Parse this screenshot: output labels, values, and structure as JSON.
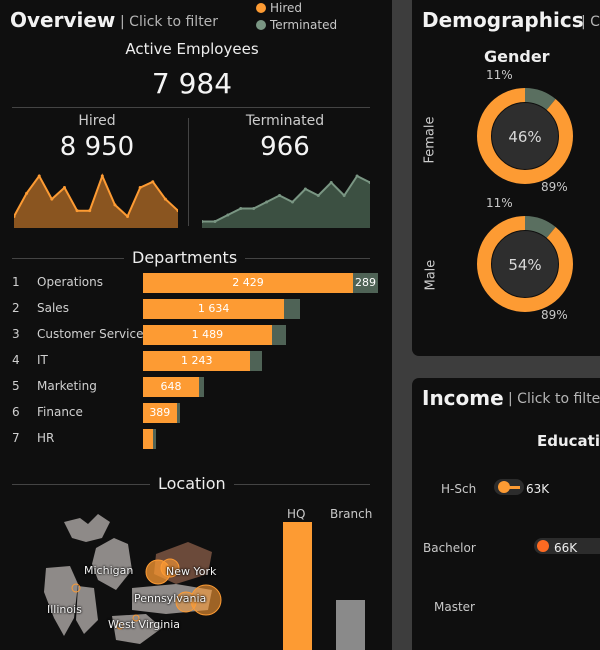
{
  "overview": {
    "title": "Overview",
    "filter_hint": "| Click to filter",
    "legend": [
      {
        "label": "Hired",
        "color": "#fd9b33"
      },
      {
        "label": "Terminated",
        "color": "#7a9683"
      }
    ],
    "active_label": "Active Employees",
    "active_value": "7 984",
    "hired_label": "Hired",
    "hired_value": "8 950",
    "terminated_label": "Terminated",
    "terminated_value": "966",
    "departments_title": "Departments",
    "location_title": "Location",
    "location_states": [
      "Michigan",
      "New York",
      "Illinois",
      "Pennsylvania",
      "West Virginia"
    ],
    "location_cols": [
      "HQ",
      "Branch"
    ]
  },
  "demographics": {
    "title": "Demographics",
    "filter_hint": "| C",
    "gender_title": "Gender",
    "female_label": "Female",
    "male_label": "Male"
  },
  "income": {
    "title": "Income",
    "filter_hint": "| Click to filter",
    "education_title": "Educatio",
    "levels": [
      "H-Sch",
      "Bachelor",
      "Master"
    ],
    "values": [
      "63K",
      "66K",
      ""
    ]
  },
  "chart_data": [
    {
      "type": "area",
      "title": "Hired",
      "y": [
        2,
        6,
        9,
        5,
        7,
        3,
        3,
        9,
        4,
        2,
        7,
        8,
        5,
        3
      ],
      "color": "#fd9b33"
    },
    {
      "type": "area",
      "title": "Terminated",
      "y": [
        1,
        1,
        2,
        3,
        3,
        4,
        5,
        4,
        6,
        5,
        7,
        5,
        8,
        7
      ],
      "color": "#4f6356"
    },
    {
      "type": "bar",
      "orientation": "horizontal",
      "categories": [
        "Operations",
        "Sales",
        "Customer Service",
        "IT",
        "Marketing",
        "Finance",
        "HR"
      ],
      "ranks": [
        "1",
        "2",
        "3",
        "4",
        "5",
        "6",
        "7"
      ],
      "series": [
        {
          "name": "Hired",
          "values": [
            2429,
            1634,
            1489,
            1243,
            648,
            389,
            120
          ],
          "labels": [
            "2 429",
            "1 634",
            "1 489",
            "1 243",
            "648",
            "389",
            ""
          ]
        },
        {
          "name": "Terminated",
          "values": [
            289,
            180,
            170,
            130,
            60,
            40,
            5
          ],
          "labels": [
            "289",
            "",
            "",
            "",
            "",
            "",
            ""
          ]
        }
      ]
    },
    {
      "type": "pie",
      "title": "Female",
      "slices": [
        {
          "label": "Hired",
          "value": 89
        },
        {
          "label": "Terminated",
          "value": 11
        }
      ],
      "center_label": "46%",
      "labels": [
        "11%",
        "89%"
      ]
    },
    {
      "type": "pie",
      "title": "Male",
      "slices": [
        {
          "label": "Hired",
          "value": 89
        },
        {
          "label": "Terminated",
          "value": 11
        }
      ],
      "center_label": "54%",
      "labels": [
        "11%",
        "89%"
      ]
    },
    {
      "type": "bar",
      "title": "Location",
      "categories": [
        "HQ",
        "Branch"
      ],
      "values": [
        100,
        40
      ]
    }
  ]
}
